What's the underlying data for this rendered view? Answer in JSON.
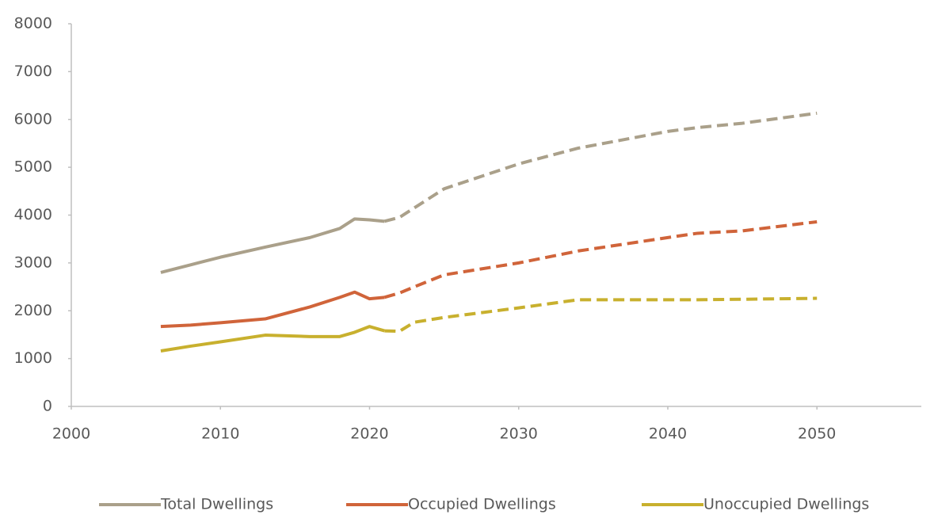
{
  "chart_data": {
    "type": "line",
    "x": [
      2006,
      2008,
      2010,
      2013,
      2016,
      2018,
      2019,
      2020,
      2021,
      2022,
      2023,
      2025,
      2030,
      2034,
      2040,
      2042,
      2045,
      2050
    ],
    "projection_from": 2021,
    "series": [
      {
        "name": "Total Dwellings",
        "color": "#aaa08a",
        "values": [
          2800,
          2960,
          3120,
          3330,
          3530,
          3720,
          3920,
          3900,
          3870,
          3950,
          4150,
          4550,
          5070,
          5400,
          5750,
          5830,
          5920,
          6130
        ]
      },
      {
        "name": "Occupied Dwellings",
        "color": "#d0643a",
        "values": [
          1670,
          1700,
          1750,
          1830,
          2080,
          2280,
          2390,
          2250,
          2280,
          2370,
          2500,
          2750,
          3000,
          3250,
          3530,
          3620,
          3670,
          3860
        ]
      },
      {
        "name": "Unoccupied Dwellings",
        "color": "#c8b02e",
        "values": [
          1160,
          1260,
          1350,
          1490,
          1460,
          1460,
          1550,
          1670,
          1580,
          1570,
          1760,
          1860,
          2060,
          2230,
          2230,
          2230,
          2240,
          2260
        ]
      }
    ],
    "xlim": [
      2000,
      2057
    ],
    "xticks": [
      2000,
      2010,
      2020,
      2030,
      2040,
      2050
    ],
    "ylim": [
      0,
      8000
    ],
    "yticks": [
      0,
      1000,
      2000,
      3000,
      4000,
      5000,
      6000,
      7000,
      8000
    ],
    "legend": "bottom"
  }
}
